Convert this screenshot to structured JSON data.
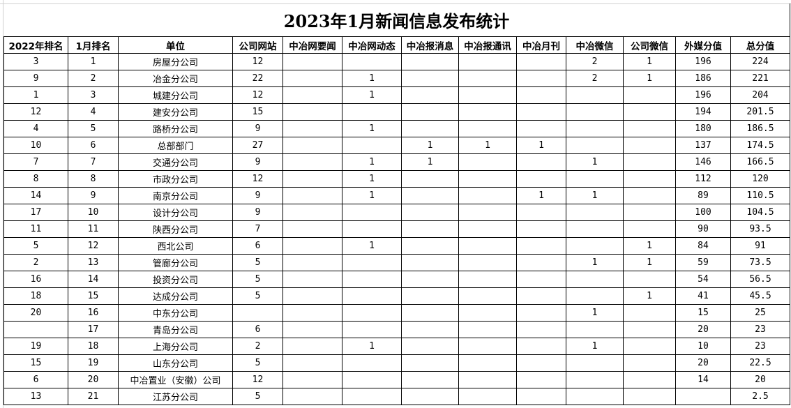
{
  "title": "2023年1月新闻信息发布统计",
  "columns": [
    "2022年排名",
    "1月排名",
    "单位",
    "公司网站",
    "中冶网要闻",
    "中冶网动态",
    "中冶报消息",
    "中冶报通讯",
    "中冶月刊",
    "中冶微信",
    "公司微信",
    "外媒分值",
    "总分值"
  ],
  "rows": [
    [
      "3",
      "1",
      "房屋分公司",
      "12",
      "",
      "",
      "",
      "",
      "",
      "2",
      "1",
      "196",
      "224"
    ],
    [
      "9",
      "2",
      "冶金分公司",
      "22",
      "",
      "1",
      "",
      "",
      "",
      "2",
      "1",
      "186",
      "221"
    ],
    [
      "1",
      "3",
      "城建分公司",
      "12",
      "",
      "1",
      "",
      "",
      "",
      "",
      "",
      "196",
      "204"
    ],
    [
      "12",
      "4",
      "建安分公司",
      "15",
      "",
      "",
      "",
      "",
      "",
      "",
      "",
      "194",
      "201.5"
    ],
    [
      "4",
      "5",
      "路桥分公司",
      "9",
      "",
      "1",
      "",
      "",
      "",
      "",
      "",
      "180",
      "186.5"
    ],
    [
      "10",
      "6",
      "总部部门",
      "27",
      "",
      "",
      "1",
      "1",
      "1",
      "",
      "",
      "137",
      "174.5"
    ],
    [
      "7",
      "7",
      "交通分公司",
      "9",
      "",
      "1",
      "1",
      "",
      "",
      "1",
      "",
      "146",
      "166.5"
    ],
    [
      "8",
      "8",
      "市政分公司",
      "12",
      "",
      "1",
      "",
      "",
      "",
      "",
      "",
      "112",
      "120"
    ],
    [
      "14",
      "9",
      "南京分公司",
      "9",
      "",
      "1",
      "",
      "",
      "1",
      "1",
      "",
      "89",
      "110.5"
    ],
    [
      "17",
      "10",
      "设计分公司",
      "9",
      "",
      "",
      "",
      "",
      "",
      "",
      "",
      "100",
      "104.5"
    ],
    [
      "11",
      "11",
      "陕西分公司",
      "7",
      "",
      "",
      "",
      "",
      "",
      "",
      "",
      "90",
      "93.5"
    ],
    [
      "5",
      "12",
      "西北公司",
      "6",
      "",
      "1",
      "",
      "",
      "",
      "",
      "1",
      "84",
      "91"
    ],
    [
      "2",
      "13",
      "管廊分公司",
      "5",
      "",
      "",
      "",
      "",
      "",
      "1",
      "1",
      "59",
      "73.5"
    ],
    [
      "16",
      "14",
      "投资分公司",
      "5",
      "",
      "",
      "",
      "",
      "",
      "",
      "",
      "54",
      "56.5"
    ],
    [
      "18",
      "15",
      "达成分公司",
      "5",
      "",
      "",
      "",
      "",
      "",
      "",
      "1",
      "41",
      "45.5"
    ],
    [
      "20",
      "16",
      "中东分公司",
      "",
      "",
      "",
      "",
      "",
      "",
      "1",
      "",
      "15",
      "25"
    ],
    [
      "",
      "17",
      "青岛分公司",
      "6",
      "",
      "",
      "",
      "",
      "",
      "",
      "",
      "20",
      "23"
    ],
    [
      "19",
      "18",
      "上海分公司",
      "2",
      "",
      "1",
      "",
      "",
      "",
      "1",
      "",
      "10",
      "23"
    ],
    [
      "15",
      "19",
      "山东分公司",
      "5",
      "",
      "",
      "",
      "",
      "",
      "",
      "",
      "20",
      "22.5"
    ],
    [
      "6",
      "20",
      "中冶置业（安徽）公司",
      "12",
      "",
      "",
      "",
      "",
      "",
      "",
      "",
      "14",
      "20"
    ],
    [
      "13",
      "21",
      "江苏分公司",
      "5",
      "",
      "",
      "",
      "",
      "",
      "",
      "",
      "",
      "2.5"
    ]
  ]
}
